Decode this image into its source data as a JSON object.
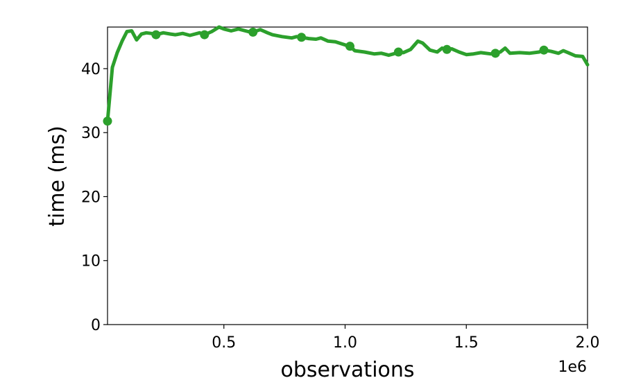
{
  "chart_data": {
    "type": "line",
    "title": "",
    "xlabel": "observations",
    "ylabel": "time (ms)",
    "x_offset_label": "1e6",
    "xlim": [
      0.02,
      2.0
    ],
    "ylim": [
      0,
      46.5
    ],
    "grid": false,
    "legend": "none",
    "x_ticks": [
      0.5,
      1.0,
      1.5,
      2.0
    ],
    "x_tick_labels": [
      "0.5",
      "1.0",
      "1.5",
      "2.0"
    ],
    "y_ticks": [
      0,
      10,
      20,
      30,
      40
    ],
    "y_tick_labels": [
      "0",
      "10",
      "20",
      "30",
      "40"
    ],
    "series": [
      {
        "color": "#2ca02c",
        "x": [
          0.02,
          0.04,
          0.06,
          0.08,
          0.1,
          0.12,
          0.14,
          0.16,
          0.18,
          0.2,
          0.22,
          0.25,
          0.28,
          0.3,
          0.33,
          0.36,
          0.4,
          0.42,
          0.45,
          0.48,
          0.5,
          0.53,
          0.56,
          0.6,
          0.62,
          0.65,
          0.68,
          0.7,
          0.74,
          0.78,
          0.8,
          0.82,
          0.85,
          0.88,
          0.9,
          0.93,
          0.96,
          1.0,
          1.02,
          1.04,
          1.08,
          1.12,
          1.15,
          1.18,
          1.2,
          1.22,
          1.24,
          1.27,
          1.3,
          1.32,
          1.35,
          1.38,
          1.4,
          1.42,
          1.44,
          1.47,
          1.5,
          1.53,
          1.56,
          1.6,
          1.62,
          1.64,
          1.66,
          1.68,
          1.72,
          1.76,
          1.8,
          1.82,
          1.85,
          1.88,
          1.9,
          1.92,
          1.95,
          1.98,
          2.0
        ],
        "y": [
          31.8,
          40.2,
          42.5,
          44.3,
          45.8,
          45.9,
          44.5,
          45.4,
          45.6,
          45.5,
          45.3,
          45.6,
          45.4,
          45.3,
          45.5,
          45.2,
          45.6,
          45.3,
          45.8,
          46.5,
          46.2,
          45.9,
          46.2,
          45.8,
          45.7,
          46.1,
          45.6,
          45.3,
          45.0,
          44.8,
          45.0,
          44.9,
          44.7,
          44.6,
          44.8,
          44.3,
          44.2,
          43.7,
          43.5,
          42.8,
          42.6,
          42.3,
          42.4,
          42.1,
          42.3,
          42.6,
          42.5,
          43.0,
          44.3,
          44.0,
          42.9,
          42.6,
          43.2,
          43.0,
          43.1,
          42.6,
          42.2,
          42.3,
          42.5,
          42.3,
          42.4,
          42.6,
          43.2,
          42.4,
          42.5,
          42.4,
          42.6,
          42.9,
          42.7,
          42.4,
          42.8,
          42.5,
          42.0,
          41.9,
          40.6
        ],
        "markers_x": [
          0.02,
          0.22,
          0.42,
          0.62,
          0.82,
          1.02,
          1.22,
          1.42,
          1.62,
          1.82
        ],
        "markers_y": [
          31.8,
          45.3,
          45.3,
          45.7,
          44.9,
          43.5,
          42.6,
          43.0,
          42.4,
          42.9
        ]
      }
    ]
  }
}
